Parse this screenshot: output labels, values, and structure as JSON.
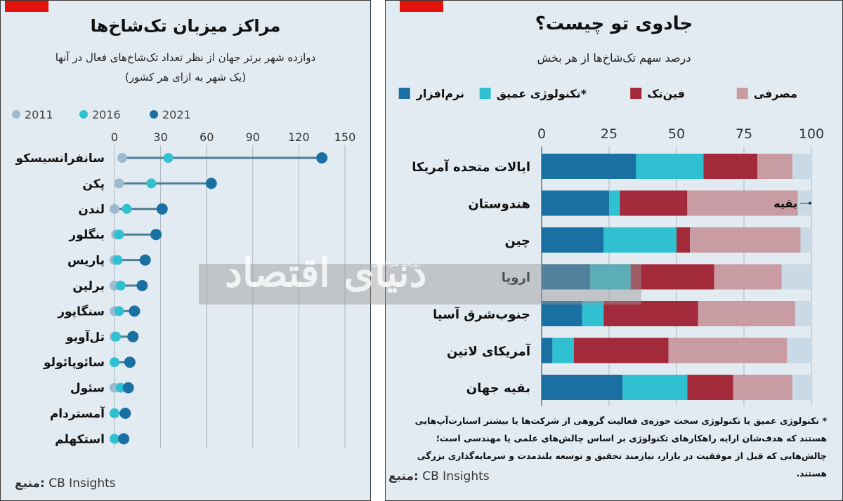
{
  "left": {
    "title": "مراکز میزبان تک‌شاخ‌ها",
    "subtitle_line1": "دوازده شهر برتر جهان از نظر تعداد تک‌شاخ‌های فعال در آنها",
    "subtitle_line2": "(یک شهر به ازای هر کشور)",
    "source_label": "منبع:",
    "source_text": "CB Insights"
  },
  "right": {
    "title": "جادوی تو چیست؟",
    "subtitle": "درصد سهم تک‌شاخ‌ها از هر بخش",
    "source_label": "منبع:",
    "source_text": "CB Insights",
    "remainder_label": "بقیه",
    "footnote": "* تکنولوژی عمیق یا تکنولوژی سخت حوزه‌ی فعالیت گروهی از شرکت‌ها یا بیشتر استارت‌آپ‌هایی هستند که هدف‌شان ارایه راهکارهای تکنولوژی بر اساس چالش‌های علمی یا مهندسی است؛ چالش‌هایی که قبل از موفقیت در بازار، نیازمند تحقیق و توسعه بلندمدت و سرمایه‌گذاری بزرگی هستند."
  },
  "watermark": {
    "text": "دنیای اقتصاد",
    "small_text": "روزنامه صبح ایران"
  },
  "colors": {
    "y2011": "#9dbad0",
    "y2016": "#2fc0d1",
    "y2021": "#1a6fa3",
    "software": "#1a6fa3",
    "deeptech": "#2fc0d1",
    "fintech": "#a32a3a",
    "consumer": "#c99ba3",
    "remainder": "#c9dae6"
  },
  "chart_data": [
    {
      "type": "dot",
      "title": "مراکز میزبان تک‌شاخ‌ها",
      "xlim": [
        0,
        150
      ],
      "xticks": [
        0,
        30,
        60,
        90,
        120,
        150
      ],
      "series_names": [
        "2011",
        "2016",
        "2021"
      ],
      "rows": [
        {
          "label": "سانفرانسیسکو",
          "v2011": 5,
          "v2016": 35,
          "v2021": 135
        },
        {
          "label": "پکن",
          "v2011": 3,
          "v2016": 24,
          "v2021": 63
        },
        {
          "label": "لندن",
          "v2011": 0,
          "v2016": 8,
          "v2021": 31
        },
        {
          "label": "بنگلور",
          "v2011": 1,
          "v2016": 3,
          "v2021": 27
        },
        {
          "label": "پاریس",
          "v2011": 0,
          "v2016": 2,
          "v2021": 20
        },
        {
          "label": "برلین",
          "v2011": 0,
          "v2016": 4,
          "v2021": 18
        },
        {
          "label": "سنگاپور",
          "v2011": 0,
          "v2016": 3,
          "v2021": 13
        },
        {
          "label": "تل‌آویو",
          "v2011": 0,
          "v2016": 1,
          "v2021": 12
        },
        {
          "label": "سائوپائولو",
          "v2011": 0,
          "v2016": 0,
          "v2021": 10
        },
        {
          "label": "سئول",
          "v2011": 0,
          "v2016": 4,
          "v2021": 9
        },
        {
          "label": "آمستردام",
          "v2011": 0,
          "v2016": 0,
          "v2021": 7
        },
        {
          "label": "استکهلم",
          "v2011": 0,
          "v2016": 0,
          "v2021": 6
        }
      ]
    },
    {
      "type": "bar",
      "stacked": true,
      "orientation": "horizontal",
      "title": "جادوی تو چیست؟",
      "subtitle": "درصد سهم تک‌شاخ‌ها از هر بخش",
      "xlim": [
        0,
        100
      ],
      "xticks": [
        0,
        25,
        50,
        75,
        100
      ],
      "categories": [
        "ایالات متحده آمریکا",
        "هندوستان",
        "چین",
        "اروپا",
        "جنوب‌شرق آسیا",
        "آمریکای لاتین",
        "بقیه جهان"
      ],
      "series": [
        {
          "name": "نرم‌افزار",
          "values": [
            35,
            25,
            23,
            18,
            15,
            4,
            30
          ]
        },
        {
          "name": "تکنولوژی عمیق*",
          "values": [
            25,
            4,
            27,
            15,
            8,
            8,
            24
          ]
        },
        {
          "name": "فین‌تک",
          "values": [
            20,
            25,
            5,
            31,
            35,
            35,
            17
          ]
        },
        {
          "name": "مصرفی",
          "values": [
            13,
            41,
            41,
            25,
            36,
            44,
            22
          ]
        },
        {
          "name": "بقیه",
          "values": [
            7,
            5,
            4,
            11,
            6,
            9,
            7
          ]
        }
      ]
    }
  ]
}
